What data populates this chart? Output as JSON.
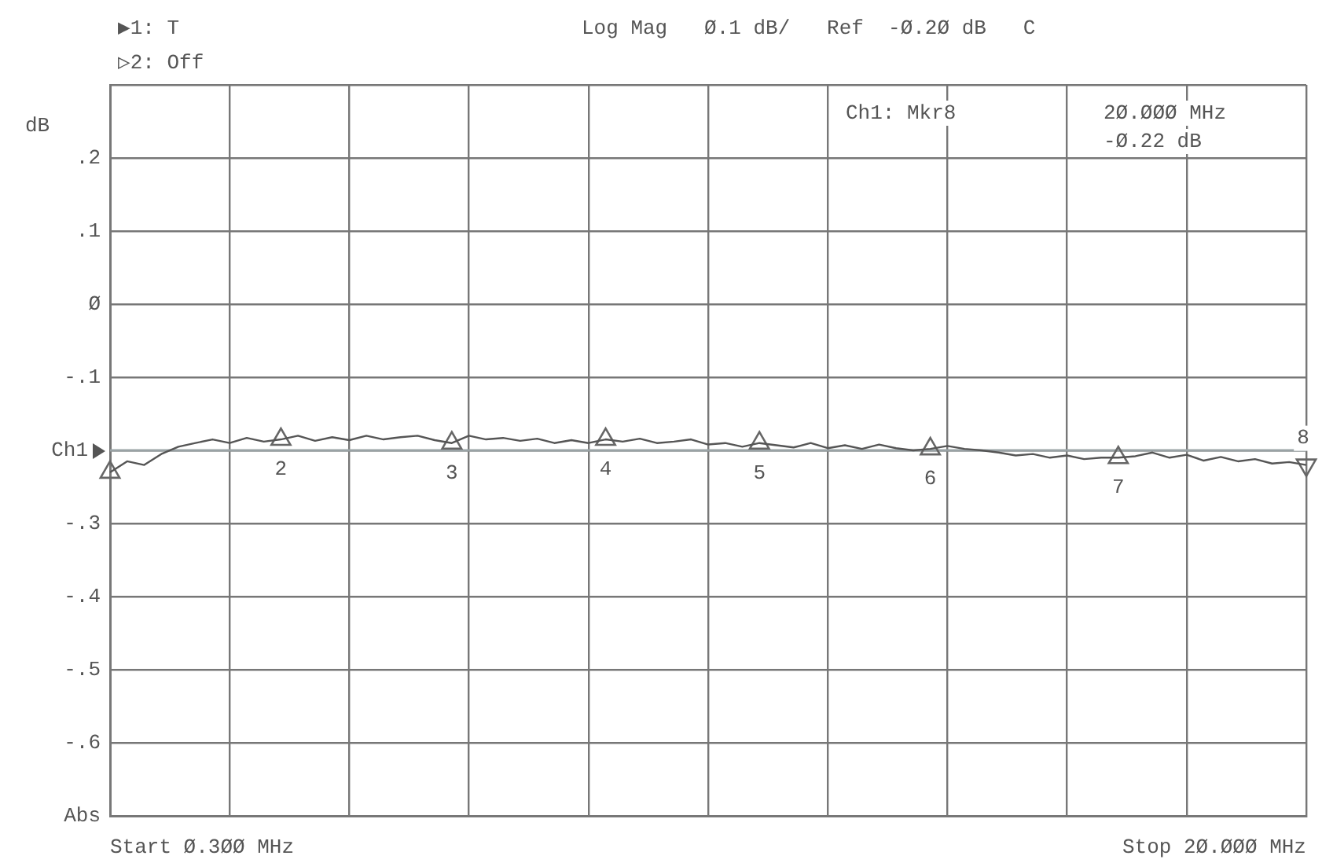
{
  "chart_data": {
    "type": "line",
    "ylabel": "dB",
    "categories": [
      null,
      null,
      null,
      null,
      null,
      null,
      null,
      null,
      null,
      null,
      null,
      null,
      null,
      null,
      null,
      null,
      null,
      null,
      null,
      null,
      null,
      null,
      null,
      null,
      null,
      null,
      null,
      null,
      null,
      null,
      null,
      null,
      null,
      null,
      null,
      null,
      null,
      null,
      null,
      null,
      null,
      null,
      null,
      null,
      null,
      null,
      null,
      null,
      null,
      null,
      null,
      null,
      null,
      null,
      null,
      null,
      null,
      null,
      null,
      null,
      null,
      null,
      null,
      null,
      null,
      null,
      null,
      null,
      null,
      null,
      null
    ],
    "ylim": [
      -0.7,
      0.3
    ],
    "yticks": [
      {
        "value": 0.3,
        "label": null
      },
      {
        "value": 0.2,
        "label": ".2"
      },
      {
        "value": 0.1,
        "label": ".1"
      },
      {
        "value": 0,
        "label": "Ø"
      },
      {
        "value": -0.1,
        "label": "-.1"
      },
      {
        "value": -0.2,
        "label": null
      },
      {
        "value": -0.3,
        "label": "-.3"
      },
      {
        "value": -0.4,
        "label": "-.4"
      },
      {
        "value": -0.5,
        "label": "-.5"
      },
      {
        "value": -0.6,
        "label": "-.6"
      },
      {
        "value": -0.7,
        "label": "Abs"
      }
    ],
    "tick_labels": "y",
    "grid": true,
    "legend": false,
    "line_style": "solid",
    "ref_lines": [
      {
        "axis": "y",
        "value": -0.2,
        "label": "Ch1",
        "color": "#9aa3a6"
      }
    ],
    "series": [
      {
        "color": "#555555",
        "marker": "none",
        "values": [
          -0.23,
          -0.215,
          -0.22,
          -0.205,
          -0.195,
          -0.19,
          -0.185,
          -0.19,
          -0.183,
          -0.188,
          -0.185,
          -0.18,
          -0.187,
          -0.182,
          -0.186,
          -0.18,
          -0.185,
          -0.182,
          -0.18,
          -0.186,
          -0.19,
          -0.18,
          -0.185,
          -0.183,
          -0.187,
          -0.184,
          -0.19,
          -0.186,
          -0.19,
          -0.185,
          -0.188,
          -0.184,
          -0.19,
          -0.188,
          -0.185,
          -0.192,
          -0.19,
          -0.195,
          -0.19,
          -0.193,
          -0.196,
          -0.19,
          -0.197,
          -0.193,
          -0.198,
          -0.192,
          -0.197,
          -0.2,
          -0.198,
          -0.194,
          -0.198,
          -0.2,
          -0.203,
          -0.207,
          -0.205,
          -0.21,
          -0.207,
          -0.212,
          -0.21,
          -0.21,
          -0.208,
          -0.203,
          -0.21,
          -0.206,
          -0.214,
          -0.209,
          -0.215,
          -0.212,
          -0.218,
          -0.216,
          -0.22
        ]
      },
      {
        "type": "scatter",
        "color": "#666666",
        "marker": "triangle",
        "values": [
          -0.23,
          null,
          null,
          null,
          null,
          null,
          null,
          null,
          null,
          null,
          -0.185,
          null,
          null,
          null,
          null,
          null,
          null,
          null,
          null,
          null,
          -0.19,
          null,
          null,
          null,
          null,
          null,
          null,
          null,
          null,
          -0.185,
          null,
          null,
          null,
          null,
          null,
          null,
          null,
          null,
          -0.19,
          null,
          null,
          null,
          null,
          null,
          null,
          null,
          null,
          null,
          -0.198,
          null,
          null,
          null,
          null,
          null,
          null,
          null,
          null,
          null,
          null,
          -0.21,
          null,
          null,
          null,
          null,
          null,
          null,
          null,
          null,
          null,
          null,
          -0.22
        ]
      }
    ],
    "annotations": [
      "▶1: T",
      "▷2: Off",
      "Log Mag   Ø.1 dB/   Ref  -Ø.2Ø dB   C",
      "Ch1: Mkr8",
      "2Ø.ØØØ MHz",
      "-Ø.22 dB",
      "Start Ø.3ØØ MHz",
      "Stop 2Ø.ØØØ MHz",
      "2",
      "3",
      "4",
      "5",
      "6",
      "7",
      "8"
    ]
  }
}
